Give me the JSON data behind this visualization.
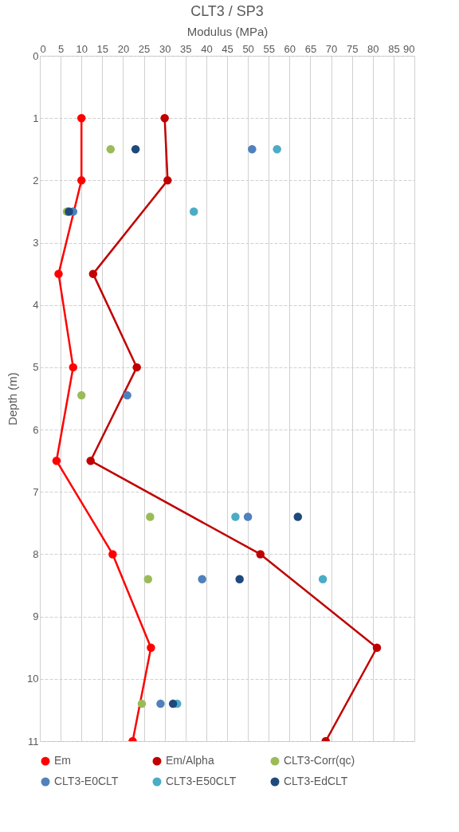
{
  "chart_data": {
    "type": "line",
    "title": "CLT3 / SP3",
    "xlabel": "Modulus (MPa)",
    "ylabel": "Depth (m)",
    "xlim": [
      0,
      90
    ],
    "xticks": [
      0,
      5,
      10,
      15,
      20,
      25,
      30,
      35,
      40,
      45,
      50,
      55,
      60,
      65,
      70,
      75,
      80,
      85,
      90
    ],
    "ylim": [
      11,
      0
    ],
    "yticks": [
      0,
      1,
      2,
      3,
      4,
      5,
      6,
      7,
      8,
      9,
      10,
      11
    ],
    "grid": true,
    "legend": "bottom",
    "marker": "circle",
    "series": [
      {
        "name": "Em",
        "color": "#ff0000",
        "x": [
          10,
          10,
          4.5,
          8,
          4,
          17.5,
          26.7,
          22.3
        ],
        "values": [
          1,
          2,
          3.5,
          5,
          6.5,
          8,
          9.5,
          11
        ]
      },
      {
        "name": "Em/Alpha",
        "color": "#c00000",
        "x": [
          30,
          30.7,
          12.8,
          23.3,
          12.2,
          53,
          81,
          68.7
        ],
        "values": [
          1,
          2,
          3.5,
          5,
          6.5,
          8,
          9.5,
          11
        ]
      },
      {
        "name": "CLT3-Corr(qc)",
        "type": "scatter",
        "color": "#9bbb59",
        "x": [
          17,
          6.5,
          10,
          26.5,
          26,
          24.5
        ],
        "values": [
          1.5,
          2.5,
          5.45,
          7.4,
          8.4,
          10.4
        ]
      },
      {
        "name": "CLT3-E0CLT",
        "type": "scatter",
        "color": "#4f81bd",
        "x": [
          51,
          8,
          21,
          50,
          39,
          29
        ],
        "values": [
          1.5,
          2.5,
          5.45,
          7.4,
          8.4,
          10.4
        ]
      },
      {
        "name": "CLT3-E50CLT",
        "type": "scatter",
        "color": "#4bacc6",
        "x": [
          57,
          37,
          47,
          68,
          33
        ],
        "values": [
          1.5,
          2.5,
          7.4,
          8.4,
          10.4
        ]
      },
      {
        "name": "CLT3-EdCLT",
        "type": "scatter",
        "color": "#1f497d",
        "x": [
          23,
          7,
          62,
          48,
          32
        ],
        "values": [
          1.5,
          2.5,
          7.4,
          8.4,
          10.4
        ]
      }
    ]
  }
}
